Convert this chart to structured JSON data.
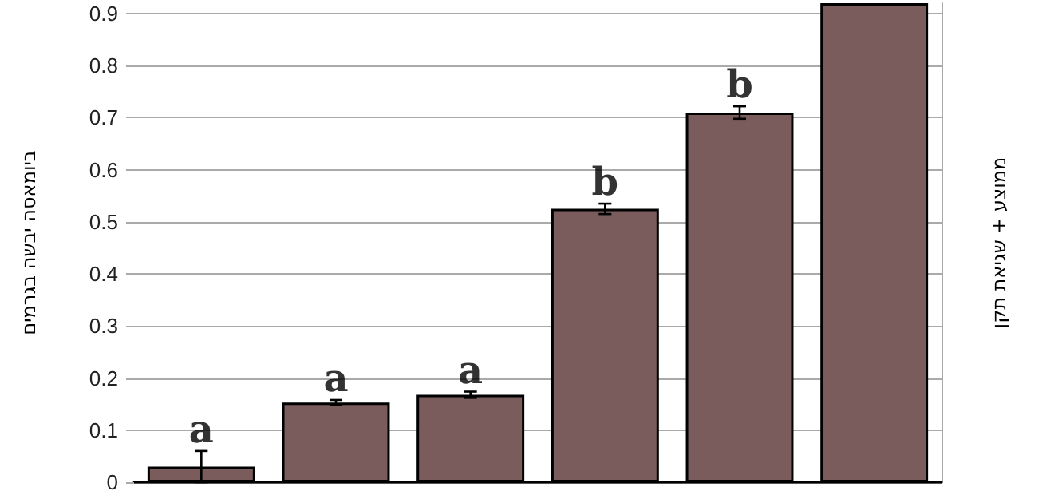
{
  "chart_data": {
    "type": "bar",
    "ylabel": "ביומאסה יבשה בגרמים",
    "y2label": "ממוצע + שגיאת תקן",
    "categories": [
      null,
      null,
      null,
      null,
      null,
      null
    ],
    "values": [
      0.03,
      0.153,
      0.168,
      0.525,
      0.71,
      0.92
    ],
    "errors": [
      0.03,
      0.005,
      0.006,
      0.01,
      0.012,
      null
    ],
    "color": "#7a5c5c",
    "ylim": [
      0,
      0.92
    ],
    "yticks": [
      0,
      0.1,
      0.2,
      0.3,
      0.4,
      0.5,
      0.6,
      0.7,
      0.8,
      0.9
    ],
    "grid": "y",
    "annotations": [
      {
        "text": "a",
        "y": 0.06
      },
      {
        "text": "a",
        "y": 0.158
      },
      {
        "text": "a",
        "y": 0.174
      },
      {
        "text": "b",
        "y": 0.535
      },
      {
        "text": "b",
        "y": 0.722
      }
    ]
  }
}
